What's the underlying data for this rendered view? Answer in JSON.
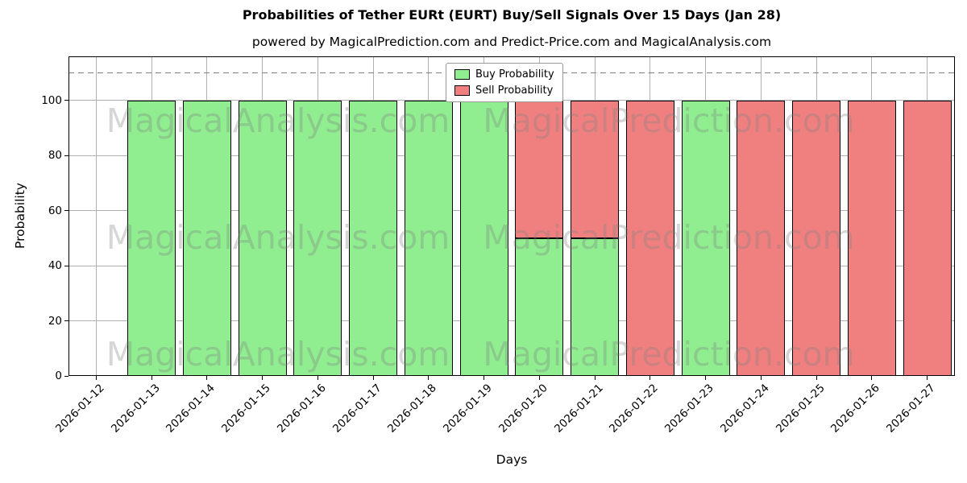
{
  "title": "Probabilities of Tether EURt (EURT) Buy/Sell Signals Over 15 Days (Jan 28)",
  "subtitle": "powered by MagicalPrediction.com and Predict-Price.com and MagicalAnalysis.com",
  "watermarks": {
    "left": "MagicalAnalysis.com",
    "right": "MagicalPrediction.com"
  },
  "legend": {
    "buy_label": "Buy Probability",
    "sell_label": "Sell Probability"
  },
  "axes": {
    "xlabel": "Days",
    "ylabel": "Probability",
    "yticks": [
      0,
      20,
      40,
      60,
      80,
      100
    ],
    "ylim": [
      0,
      116
    ],
    "threshold_dashed_y": 110,
    "grid": true
  },
  "colors": {
    "buy": "#90ee90",
    "sell": "#f08080",
    "grid": "#b0b0b0",
    "dashed_line": "#808080",
    "watermark": "rgba(128,128,128,0.32)",
    "bar_edge": "#000000"
  },
  "chart_data": {
    "type": "bar",
    "stacked": true,
    "title": "Probabilities of Tether EURt (EURT) Buy/Sell Signals Over 15 Days (Jan 28)",
    "xlabel": "Days",
    "ylabel": "Probability",
    "ylim": [
      0,
      116
    ],
    "grid": true,
    "legend_position": "top-center",
    "categories": [
      "2026-01-12",
      "2026-01-13",
      "2026-01-14",
      "2026-01-15",
      "2026-01-16",
      "2026-01-17",
      "2026-01-18",
      "2026-01-19",
      "2026-01-20",
      "2026-01-21",
      "2026-01-22",
      "2026-01-23",
      "2026-01-24",
      "2026-01-25",
      "2026-01-26",
      "2026-01-27"
    ],
    "series": [
      {
        "name": "Buy Probability",
        "color": "#90ee90",
        "values": [
          0,
          100,
          100,
          100,
          100,
          100,
          100,
          100,
          50,
          50,
          0,
          100,
          0,
          0,
          0,
          0
        ]
      },
      {
        "name": "Sell Probability",
        "color": "#f08080",
        "values": [
          0,
          0,
          0,
          0,
          0,
          0,
          0,
          0,
          50,
          50,
          100,
          0,
          100,
          100,
          100,
          100
        ]
      }
    ]
  }
}
